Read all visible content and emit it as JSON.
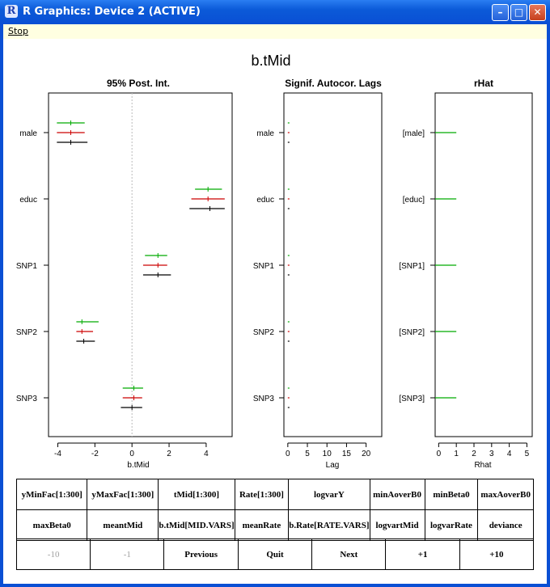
{
  "window": {
    "title": "R Graphics: Device 2 (ACTIVE)",
    "app_icon": "R",
    "controls": [
      "minimize-icon",
      "maximize-icon",
      "close-icon"
    ]
  },
  "menu": {
    "stop_label": "Stop"
  },
  "plot": {
    "main_title": "b.tMid",
    "colors": {
      "chain1": "#00aa00",
      "chain2": "#cc0000",
      "chain3": "#000000",
      "grid": "#bbbbbb"
    },
    "panel1": {
      "title": "95% Post. Int.",
      "xlabel": "b.tMid",
      "x_ticks": [
        "-4",
        "-2",
        "0",
        "2",
        "4"
      ],
      "rows": [
        "male",
        "educ",
        "SNP1",
        "SNP2",
        "SNP3"
      ]
    },
    "panel2": {
      "title": "Signif. Autocor. Lags",
      "xlabel": "Lag",
      "x_ticks": [
        "0",
        "5",
        "10",
        "15",
        "20"
      ],
      "rows": [
        "male",
        "educ",
        "SNP1",
        "SNP2",
        "SNP3"
      ]
    },
    "panel3": {
      "title": "rHat",
      "xlabel": "Rhat",
      "x_ticks": [
        "0",
        "1",
        "2",
        "3",
        "4",
        "5"
      ],
      "rows": [
        "[male]",
        "[educ]",
        "[SNP1]",
        "[SNP2]",
        "[SNP3]"
      ]
    }
  },
  "chart_data": [
    {
      "type": "interval",
      "title": "95% Post. Int.",
      "xlabel": "b.tMid",
      "xlim": [
        -4.5,
        5.4
      ],
      "reference_line": 0,
      "categories": [
        "male",
        "educ",
        "SNP1",
        "SNP2",
        "SNP3"
      ],
      "series": [
        {
          "color": "#00aa00",
          "low": [
            -4.05,
            3.4,
            0.7,
            -3.0,
            -0.5
          ],
          "mid": [
            -3.3,
            4.1,
            1.4,
            -2.7,
            0.1
          ],
          "high": [
            -2.55,
            4.85,
            1.9,
            -1.8,
            0.6
          ]
        },
        {
          "color": "#cc0000",
          "low": [
            -4.05,
            3.2,
            0.6,
            -3.0,
            -0.5
          ],
          "mid": [
            -3.3,
            4.1,
            1.4,
            -2.7,
            0.1
          ],
          "high": [
            -2.55,
            5.0,
            1.9,
            -2.1,
            0.55
          ]
        },
        {
          "color": "#000000",
          "low": [
            -4.05,
            3.1,
            0.6,
            -3.0,
            -0.6
          ],
          "mid": [
            -3.3,
            4.2,
            1.4,
            -2.6,
            0.0
          ],
          "high": [
            -2.4,
            5.0,
            2.1,
            -2.0,
            0.55
          ]
        }
      ]
    },
    {
      "type": "interval",
      "title": "Signif. Autocor. Lags",
      "xlabel": "Lag",
      "xlim": [
        -1,
        24
      ],
      "categories": [
        "male",
        "educ",
        "SNP1",
        "SNP2",
        "SNP3"
      ],
      "series": [
        {
          "color": "#00aa00",
          "lags": [
            0,
            0,
            0,
            0,
            0
          ]
        },
        {
          "color": "#cc0000",
          "lags": [
            0,
            0,
            0,
            0,
            0
          ]
        },
        {
          "color": "#000000",
          "lags": [
            0,
            0,
            0,
            0,
            0
          ]
        }
      ]
    },
    {
      "type": "bar",
      "title": "rHat",
      "xlabel": "Rhat",
      "xlim": [
        -0.2,
        5.3
      ],
      "categories": [
        "[male]",
        "[educ]",
        "[SNP1]",
        "[SNP2]",
        "[SNP3]"
      ],
      "values": [
        1.0,
        1.0,
        1.0,
        1.0,
        1.0
      ]
    }
  ],
  "buttons": {
    "row1": [
      "yMinFac[1:300]",
      "yMaxFac[1:300]",
      "tMid[1:300]",
      "Rate[1:300]",
      "logvarY",
      "minAoverB0",
      "minBeta0",
      "maxAoverB0"
    ],
    "row2": [
      "maxBeta0",
      "meantMid",
      "b.tMid[MID.VARS]",
      "meanRate",
      "b.Rate[RATE.VARS]",
      "logvartMid",
      "logvarRate",
      "deviance"
    ],
    "row3": [
      "-10",
      "-1",
      "Previous",
      "Quit",
      "Next",
      "+1",
      "+10"
    ],
    "row3_disabled": [
      true,
      true,
      false,
      false,
      false,
      false,
      false
    ]
  }
}
